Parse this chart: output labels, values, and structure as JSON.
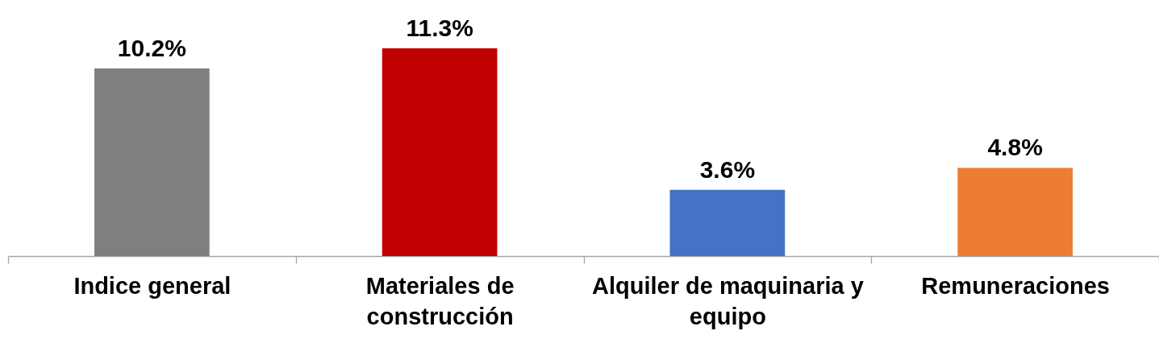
{
  "chart_data": {
    "type": "bar",
    "categories": [
      "Indice general",
      "Materiales de construcción",
      "Alquiler de maquinaria y equipo",
      "Remuneraciones"
    ],
    "values": [
      10.2,
      11.3,
      3.6,
      4.8
    ],
    "colors": [
      "#7f7f7f",
      "#c00000",
      "#4472c4",
      "#ed7d31"
    ],
    "value_labels": [
      "10.2%",
      "11.3%",
      "3.6%",
      "4.8%"
    ]
  }
}
